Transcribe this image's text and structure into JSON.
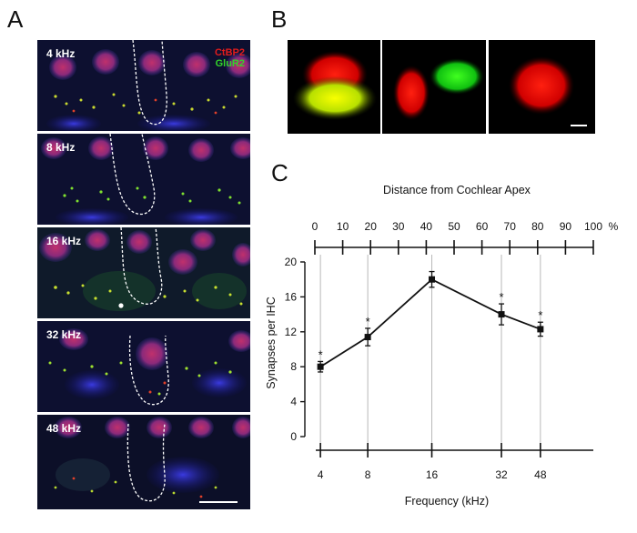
{
  "panels": {
    "a": "A",
    "b": "B",
    "c": "C"
  },
  "panel_a": {
    "legend": [
      "CtBP2",
      "GluR2"
    ],
    "legend_colors": [
      "#e21c1c",
      "#33d42a"
    ],
    "images": [
      {
        "label": "4 kHz"
      },
      {
        "label": "8 kHz"
      },
      {
        "label": "16 kHz"
      },
      {
        "label": "32 kHz"
      },
      {
        "label": "48 kHz"
      }
    ]
  },
  "chart_data": {
    "type": "line",
    "top_axis_title": "Distance from Cochlear Apex",
    "top_axis_ticks": [
      "0",
      "10",
      "20",
      "30",
      "40",
      "50",
      "60",
      "70",
      "80",
      "90",
      "100"
    ],
    "top_axis_unit": "%",
    "ylabel": "Synapses per IHC",
    "xlabel": "Frequency (kHz)",
    "ylim": [
      0,
      20
    ],
    "yticks": [
      "0",
      "4",
      "8",
      "12",
      "16",
      "20"
    ],
    "x_tick_labels": [
      "4",
      "8",
      "16",
      "32",
      "48"
    ],
    "x_distance_percent": [
      2,
      19,
      42,
      67,
      81
    ],
    "values": [
      8.0,
      11.4,
      18.0,
      14.0,
      12.3
    ],
    "errors": [
      0.6,
      1.0,
      0.9,
      1.2,
      0.8
    ],
    "significance": [
      "*",
      "*",
      "",
      "*",
      "*"
    ],
    "grid": false
  }
}
